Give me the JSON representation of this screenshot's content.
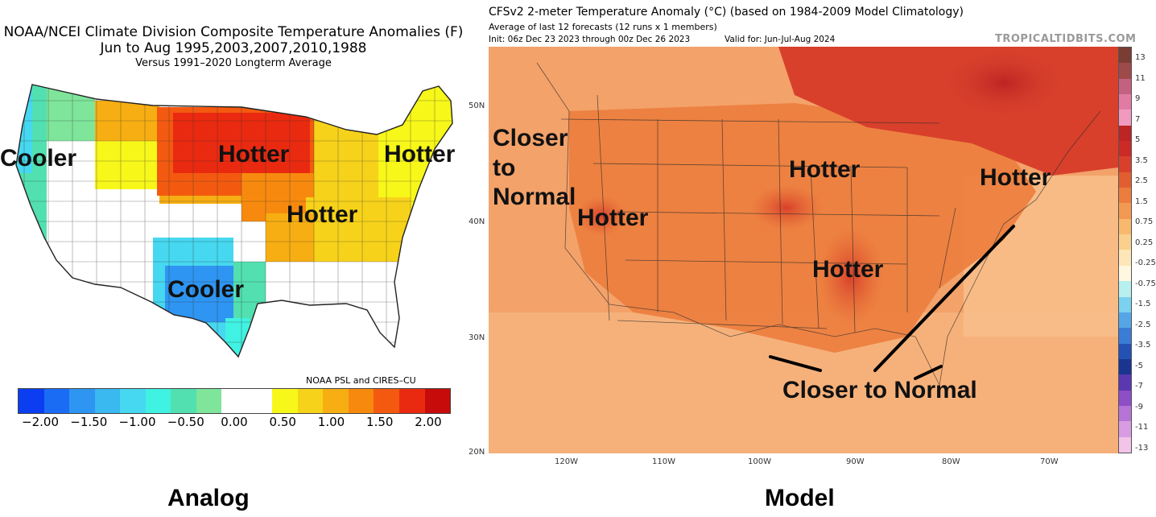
{
  "analog": {
    "title_line1": "NOAA/NCEI Climate Division Composite Temperature Anomalies (F)",
    "title_line2": "Jun to Aug  1995,2003,2007,2010,1988",
    "title_line3": "Versus 1991–2020 Longterm Average",
    "credit": "NOAA PSL and CIRES–CU",
    "labels": {
      "cooler_west": "Cooler",
      "hotter_north": "Hotter",
      "hotter_northeast": "Hotter",
      "hotter_midwest": "Hotter",
      "cooler_texas": "Cooler"
    },
    "colorbar_colors": [
      "#0a3ef0",
      "#1a6cf5",
      "#2e95f2",
      "#3ab8f0",
      "#46d8f0",
      "#40f2e2",
      "#52e0b0",
      "#7ee59a",
      "#ffffff",
      "#ffffff",
      "#f7f71a",
      "#f7d21a",
      "#f7ae12",
      "#f78a0e",
      "#f35a10",
      "#ea2a10",
      "#c70a0a"
    ],
    "colorbar_ticks": [
      "−2.00",
      "−1.50",
      "−1.00",
      "−0.50",
      "0.00",
      "0.50",
      "1.00",
      "1.50",
      "2.00"
    ],
    "caption": "Analog"
  },
  "model": {
    "title": "CFSv2 2-meter Temperature Anomaly (°C) (based on 1984-2009 Model Climatology)",
    "subtitle": "Average of last 12 forecasts (12 runs x 1 members)",
    "init": "Init: 06z Dec 23 2023 through 00z Dec 26 2023",
    "valid": "Valid for: Jun-Jul-Aug 2024",
    "brand": "TROPICALTIDBITS.COM",
    "lat_labels": [
      "50N",
      "40N",
      "30N",
      "20N"
    ],
    "lon_labels": [
      "120W",
      "110W",
      "100W",
      "90W",
      "80W",
      "70W"
    ],
    "labels": {
      "closer_line1": "Closer",
      "closer_line2": "to",
      "closer_line3": "Normal",
      "hotter_west": "Hotter",
      "hotter_north": "Hotter",
      "hotter_northeast": "Hotter",
      "hotter_south": "Hotter",
      "closer_gulf": "Closer to Normal"
    },
    "colorbar_colors": [
      "#7a3d34",
      "#9e4a4a",
      "#c46080",
      "#e17ba3",
      "#f19ac0",
      "#bd2424",
      "#cc2a26",
      "#d8402c",
      "#e25e30",
      "#ec7d3d",
      "#f39a52",
      "#f8b86e",
      "#fad08e",
      "#fde7b8",
      "#fff8e0",
      "#b8f0f0",
      "#7ad2ee",
      "#55a6e6",
      "#3a7cd6",
      "#2352b4",
      "#1a3590",
      "#5a38b0",
      "#8d4ec6",
      "#b574d6",
      "#d89ce2",
      "#f2c4e8"
    ],
    "colorbar_ticks": [
      "13",
      "11",
      "9",
      "7",
      "5",
      "3.5",
      "2.5",
      "1.5",
      "0.75",
      "0.25",
      "-0.25",
      "-0.75",
      "-1.5",
      "-2.5",
      "-3.5",
      "-5",
      "-7",
      "-9",
      "-11",
      "-13"
    ],
    "caption": "Model"
  }
}
